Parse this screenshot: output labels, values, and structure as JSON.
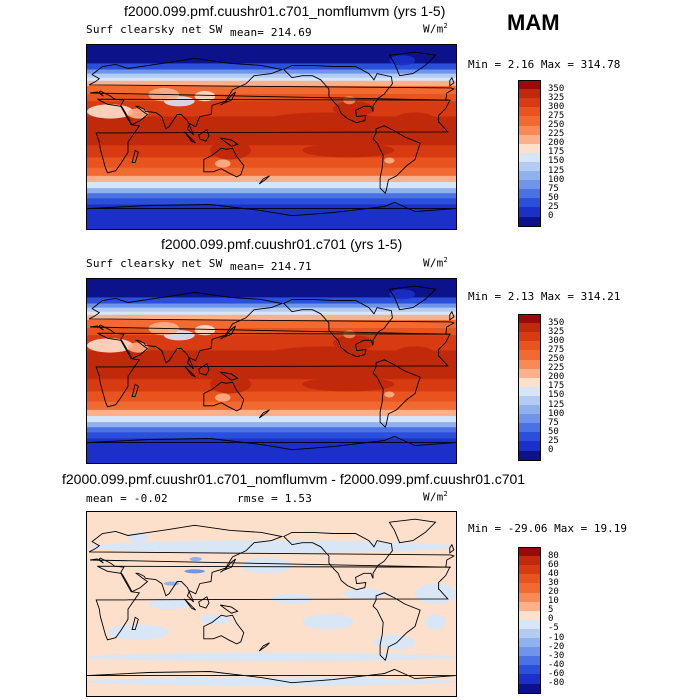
{
  "season": "MAM",
  "panels": [
    {
      "title": "f2000.099.pmf.cuushr01.c701_nomflumvm (yrs 1-5)",
      "field": "Surf clearsky net SW",
      "mean_label": "mean= 214.69",
      "units_base": "W/m",
      "units_exp": "2",
      "minmax": "Min =   2.16 Max = 314.78",
      "levels": [
        "350",
        "325",
        "300",
        "275",
        "250",
        "225",
        "200",
        "175",
        "150",
        "125",
        "100",
        "75",
        "50",
        "25",
        "0"
      ],
      "colors": [
        "#9b0a0a",
        "#c02a0a",
        "#d83a12",
        "#e8531e",
        "#f06a32",
        "#f88a55",
        "#fcb08a",
        "#fde0cc",
        "#d6e6f8",
        "#b5ccf2",
        "#8fb2ee",
        "#6e95ea",
        "#4a72e4",
        "#2a4fda",
        "#1a30c8",
        "#0c128a"
      ]
    },
    {
      "title": "f2000.099.pmf.cuushr01.c701 (yrs 1-5)",
      "field": "Surf clearsky net SW",
      "mean_label": "mean= 214.71",
      "units_base": "W/m",
      "units_exp": "2",
      "minmax": "Min =   2.13 Max = 314.21",
      "levels": [
        "350",
        "325",
        "300",
        "275",
        "250",
        "225",
        "200",
        "175",
        "150",
        "125",
        "100",
        "75",
        "50",
        "25",
        "0"
      ],
      "colors": [
        "#9b0a0a",
        "#c02a0a",
        "#d83a12",
        "#e8531e",
        "#f06a32",
        "#f88a55",
        "#fcb08a",
        "#fde0cc",
        "#d6e6f8",
        "#b5ccf2",
        "#8fb2ee",
        "#6e95ea",
        "#4a72e4",
        "#2a4fda",
        "#1a30c8",
        "#0c128a"
      ]
    },
    {
      "title": "f2000.099.pmf.cuushr01.c701_nomflumvm - f2000.099.pmf.cuushr01.c701",
      "field": "mean =  -0.02",
      "mean_label": "rmse =   1.53",
      "units_base": "W/m",
      "units_exp": "2",
      "minmax": "Min = -29.06 Max =  19.19",
      "levels": [
        "80",
        "60",
        "40",
        "30",
        "20",
        "10",
        "5",
        "0",
        "-5",
        "-10",
        "-20",
        "-30",
        "-40",
        "-60",
        "-80"
      ],
      "colors": [
        "#9b0a0a",
        "#c02a0a",
        "#d83a12",
        "#e8531e",
        "#f06a32",
        "#f88a55",
        "#fcb08a",
        "#fde0cc",
        "#d6e6f8",
        "#b5ccf2",
        "#8fb2ee",
        "#6e95ea",
        "#4a72e4",
        "#2a4fda",
        "#1a30c8",
        "#0c128a"
      ]
    }
  ]
}
